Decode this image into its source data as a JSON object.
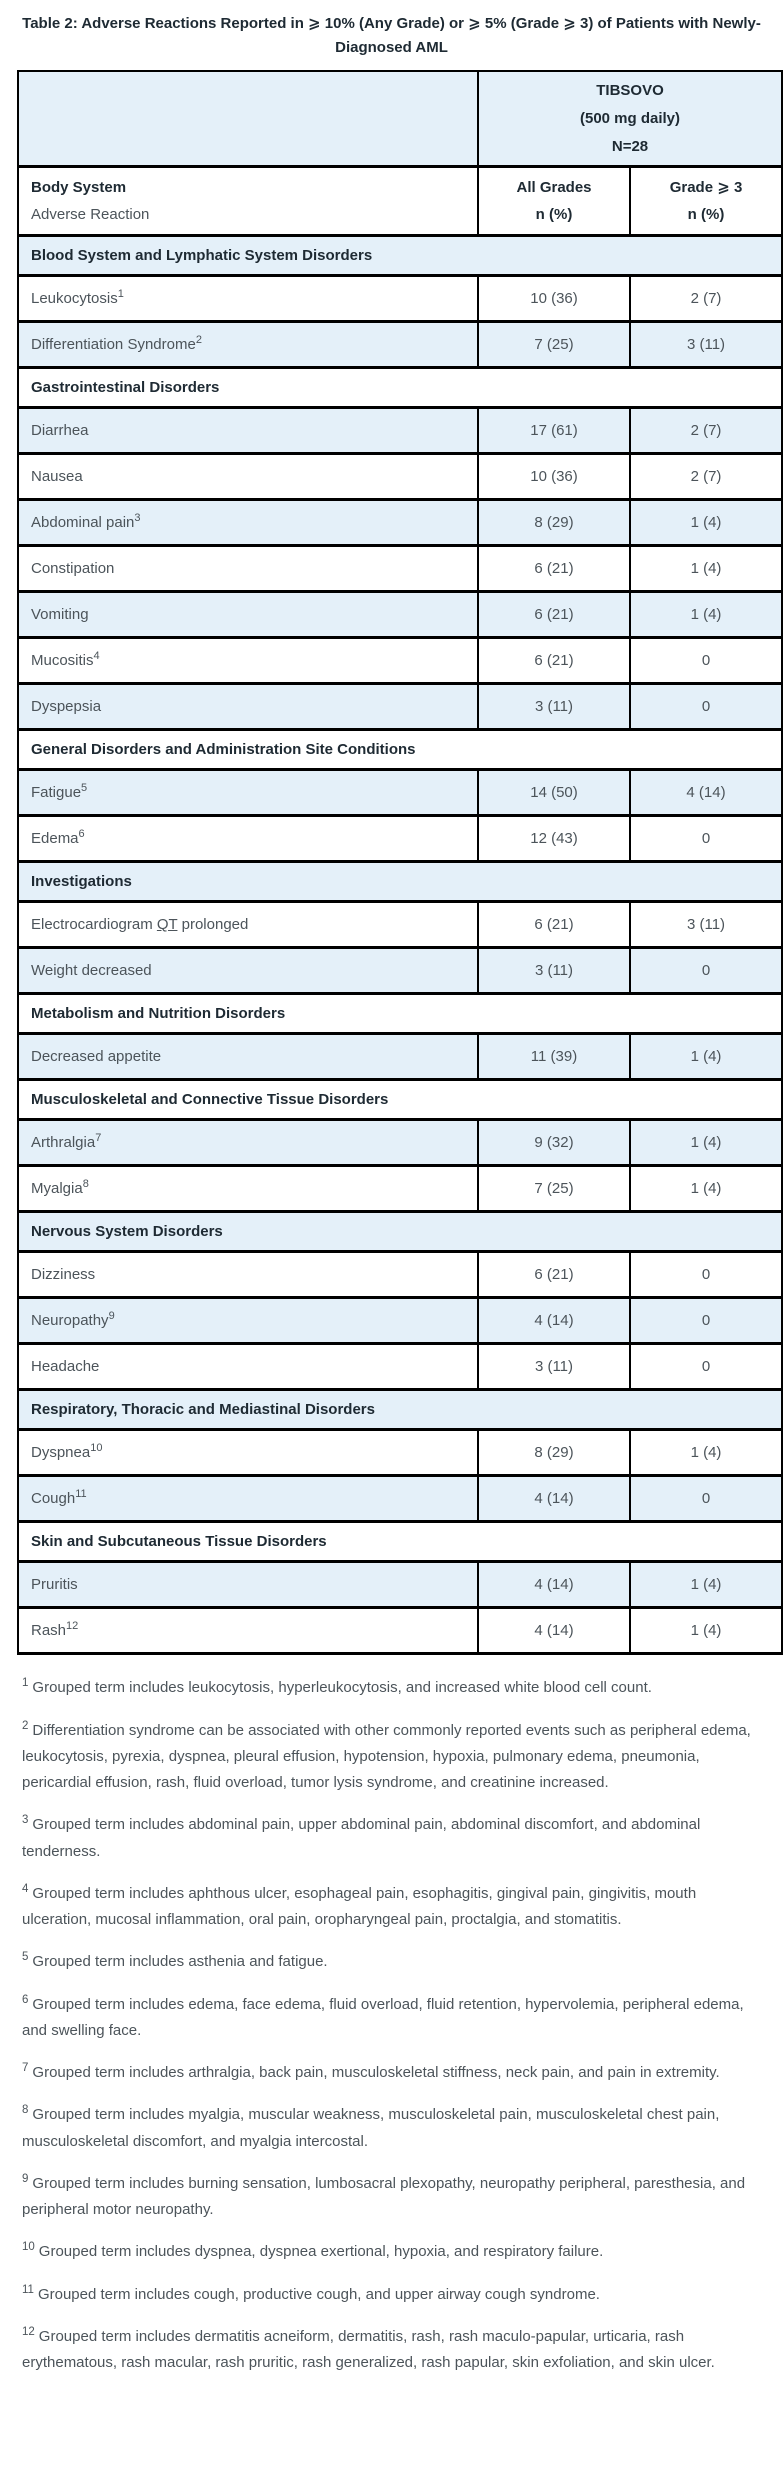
{
  "title": "Table 2: Adverse Reactions Reported in ⩾ 10% (Any Grade) or ⩾ 5% (Grade ⩾ 3) of Patients with Newly-Diagnosed AML",
  "colors": {
    "stripe_blue": "#e4f0f9",
    "border_black": "#000000",
    "heading_text": "#1e2a33",
    "body_text": "#4c545a"
  },
  "table": {
    "drug_header_lines": [
      "TIBSOVO",
      "(500 mg daily)",
      "N=28"
    ],
    "column_header": {
      "body_system": "Body System",
      "adverse_reaction": "Adverse Reaction",
      "all_grades": "All Grades",
      "grade_3": "Grade ⩾ 3",
      "n_pct": "n (%)"
    },
    "rows": [
      {
        "type": "section",
        "label": "Blood System and Lymphatic System Disorders"
      },
      {
        "type": "data",
        "reaction": "Leukocytosis",
        "sup": "1",
        "all_grades": "10 (36)",
        "grade_3": "2 (7)"
      },
      {
        "type": "data",
        "reaction": "Differentiation Syndrome",
        "sup": "2",
        "all_grades": "7 (25)",
        "grade_3": "3 (11)"
      },
      {
        "type": "section",
        "label": "Gastrointestinal Disorders"
      },
      {
        "type": "data",
        "reaction": "Diarrhea",
        "all_grades": "17 (61)",
        "grade_3": "2 (7)"
      },
      {
        "type": "data",
        "reaction": "Nausea",
        "all_grades": "10 (36)",
        "grade_3": "2 (7)"
      },
      {
        "type": "data",
        "reaction": "Abdominal pain",
        "sup": "3",
        "all_grades": "8 (29)",
        "grade_3": "1 (4)"
      },
      {
        "type": "data",
        "reaction": "Constipation",
        "all_grades": "6 (21)",
        "grade_3": "1 (4)"
      },
      {
        "type": "data",
        "reaction": "Vomiting",
        "all_grades": "6 (21)",
        "grade_3": "1 (4)"
      },
      {
        "type": "data",
        "reaction": "Mucositis",
        "sup": "4",
        "all_grades": "6 (21)",
        "grade_3": "0"
      },
      {
        "type": "data",
        "reaction": "Dyspepsia",
        "all_grades": "3 (11)",
        "grade_3": "0"
      },
      {
        "type": "section",
        "label": "General Disorders and Administration Site Conditions"
      },
      {
        "type": "data",
        "reaction": "Fatigue",
        "sup": "5",
        "all_grades": "14 (50)",
        "grade_3": "4 (14)"
      },
      {
        "type": "data",
        "reaction": "Edema",
        "sup": "6",
        "all_grades": "12 (43)",
        "grade_3": "0"
      },
      {
        "type": "section",
        "label": "Investigations"
      },
      {
        "type": "data",
        "reaction": "Electrocardiogram QT prolonged",
        "underline": "QT",
        "all_grades": "6 (21)",
        "grade_3": "3 (11)"
      },
      {
        "type": "data",
        "reaction": "Weight decreased",
        "all_grades": "3 (11)",
        "grade_3": "0"
      },
      {
        "type": "section",
        "label": "Metabolism and Nutrition Disorders"
      },
      {
        "type": "data",
        "reaction": "Decreased appetite",
        "all_grades": "11 (39)",
        "grade_3": "1 (4)"
      },
      {
        "type": "section",
        "label": "Musculoskeletal and Connective Tissue Disorders"
      },
      {
        "type": "data",
        "reaction": "Arthralgia",
        "sup": "7",
        "all_grades": "9 (32)",
        "grade_3": "1 (4)"
      },
      {
        "type": "data",
        "reaction": "Myalgia",
        "sup": "8",
        "all_grades": "7 (25)",
        "grade_3": "1 (4)"
      },
      {
        "type": "section",
        "label": "Nervous System Disorders"
      },
      {
        "type": "data",
        "reaction": "Dizziness",
        "all_grades": "6 (21)",
        "grade_3": "0"
      },
      {
        "type": "data",
        "reaction": "Neuropathy",
        "sup": "9",
        "all_grades": "4 (14)",
        "grade_3": "0"
      },
      {
        "type": "data",
        "reaction": "Headache",
        "all_grades": "3 (11)",
        "grade_3": "0"
      },
      {
        "type": "section",
        "label": "Respiratory, Thoracic and Mediastinal Disorders"
      },
      {
        "type": "data",
        "reaction": "Dyspnea",
        "sup": "10",
        "all_grades": "8 (29)",
        "grade_3": "1 (4)"
      },
      {
        "type": "data",
        "reaction": "Cough",
        "sup": "11",
        "all_grades": "4 (14)",
        "grade_3": "0"
      },
      {
        "type": "section",
        "label": "Skin and Subcutaneous Tissue Disorders"
      },
      {
        "type": "data",
        "reaction": "Pruritis",
        "all_grades": "4 (14)",
        "grade_3": "1 (4)"
      },
      {
        "type": "data",
        "reaction": "Rash",
        "sup": "12",
        "all_grades": "4 (14)",
        "grade_3": "1 (4)"
      }
    ]
  },
  "footnotes": [
    {
      "num": "1",
      "text": "Grouped term includes leukocytosis, hyperleukocytosis, and increased white blood cell count."
    },
    {
      "num": "2",
      "text": "Differentiation syndrome can be associated with other commonly reported events such as peripheral edema, leukocytosis, pyrexia, dyspnea, pleural effusion, hypotension, hypoxia, pulmonary edema, pneumonia, pericardial effusion, rash, fluid overload, tumor lysis syndrome, and creatinine increased."
    },
    {
      "num": "3",
      "text": "Grouped term includes abdominal pain, upper abdominal pain, abdominal discomfort, and abdominal tenderness."
    },
    {
      "num": "4",
      "text": "Grouped term includes aphthous ulcer, esophageal pain, esophagitis, gingival pain, gingivitis, mouth ulceration, mucosal inflammation, oral pain, oropharyngeal pain, proctalgia, and stomatitis."
    },
    {
      "num": "5",
      "text": "Grouped term includes asthenia and fatigue."
    },
    {
      "num": "6",
      "text": "Grouped term includes edema, face edema, fluid overload, fluid retention, hypervolemia, peripheral edema, and swelling face."
    },
    {
      "num": "7",
      "text": "Grouped term includes arthralgia, back pain, musculoskeletal stiffness, neck pain, and pain in extremity."
    },
    {
      "num": "8",
      "text": "Grouped term includes myalgia, muscular weakness, musculoskeletal pain, musculoskeletal chest pain, musculoskeletal discomfort, and myalgia intercostal."
    },
    {
      "num": "9",
      "text": "Grouped term includes burning sensation, lumbosacral plexopathy, neuropathy peripheral, paresthesia, and peripheral motor neuropathy."
    },
    {
      "num": "10",
      "text": "Grouped term includes dyspnea, dyspnea exertional, hypoxia, and respiratory failure."
    },
    {
      "num": "11",
      "text": "Grouped term includes cough, productive cough, and upper airway cough syndrome."
    },
    {
      "num": "12",
      "text": "Grouped term includes dermatitis acneiform, dermatitis, rash, rash maculo-papular, urticaria, rash erythematous, rash macular, rash pruritic, rash generalized, rash papular, skin exfoliation, and skin ulcer."
    }
  ]
}
